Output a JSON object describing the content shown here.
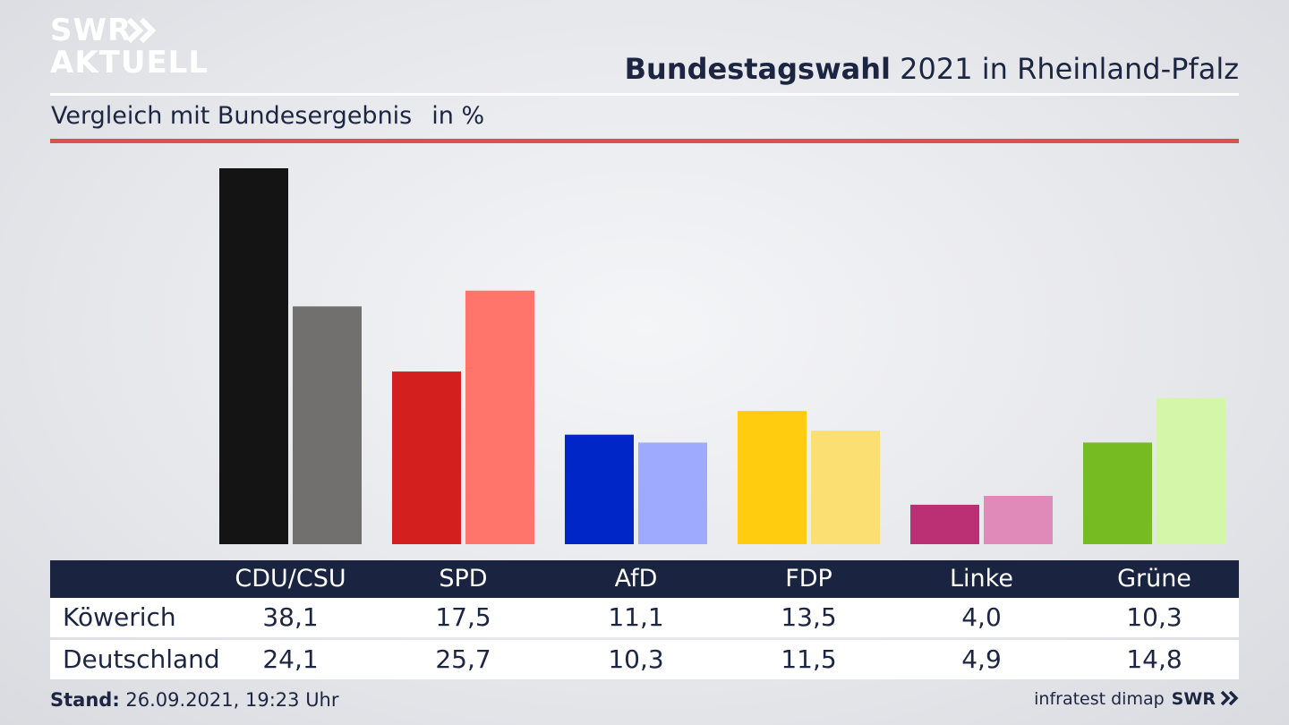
{
  "brand": {
    "line1": "SWR",
    "line2": "AKTUELL",
    "footer_logo": "SWR"
  },
  "header": {
    "title_bold": "Bundestagswahl",
    "title_rest": "2021 in Rheinland-Pfalz",
    "subtitle": "Vergleich mit Bundesergebnis",
    "unit": "in %"
  },
  "colors": {
    "accent_rule": "#d9534a",
    "table_header": "#1a2340",
    "text": "#1c2541"
  },
  "chart_data": {
    "type": "bar",
    "categories": [
      "CDU/CSU",
      "SPD",
      "AfD",
      "FDP",
      "Linke",
      "Grüne"
    ],
    "series": [
      {
        "name": "Köwerich",
        "values": [
          38.1,
          17.5,
          11.1,
          13.5,
          4.0,
          10.3
        ],
        "colors": [
          "#141414",
          "#d41f1f",
          "#0026c7",
          "#ffcc10",
          "#bb2f74",
          "#77bb22"
        ]
      },
      {
        "name": "Deutschland",
        "values": [
          24.1,
          25.7,
          10.3,
          11.5,
          4.9,
          14.8
        ],
        "colors": [
          "#72706e",
          "#ff756c",
          "#9daafe",
          "#fbdf73",
          "#df8ab8",
          "#d4f6a9"
        ]
      }
    ],
    "value_labels": [
      [
        "38,1",
        "17,5",
        "11,1",
        "13,5",
        "4,0",
        "10,3"
      ],
      [
        "24,1",
        "25,7",
        "10,3",
        "11,5",
        "4,9",
        "14,8"
      ]
    ],
    "ylim": [
      0,
      38.1
    ]
  },
  "footer": {
    "stand_label": "Stand:",
    "stand_value": "26.09.2021, 19:23 Uhr",
    "source": "infratest dimap"
  }
}
